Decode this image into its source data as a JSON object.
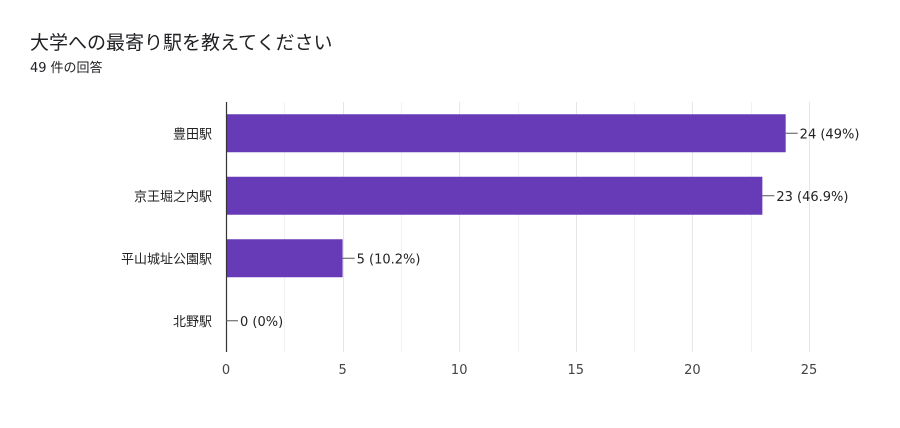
{
  "header": {
    "title": "大学への最寄り駅を教えてください",
    "response_count": "49",
    "response_suffix": "件の回答"
  },
  "chart_data": {
    "type": "bar",
    "orientation": "horizontal",
    "categories": [
      "豊田駅",
      "京王堀之内駅",
      "平山城址公園駅",
      "北野駅"
    ],
    "values": [
      24,
      23,
      5,
      0
    ],
    "data_labels": [
      "24 (49%)",
      "23 (46.9%)",
      "5 (10.2%)",
      "0 (0%)"
    ],
    "xlim": [
      0,
      25
    ],
    "xticks": [
      0,
      5,
      10,
      15,
      20,
      25
    ],
    "grid": true,
    "bar_color": "#673ab7"
  }
}
